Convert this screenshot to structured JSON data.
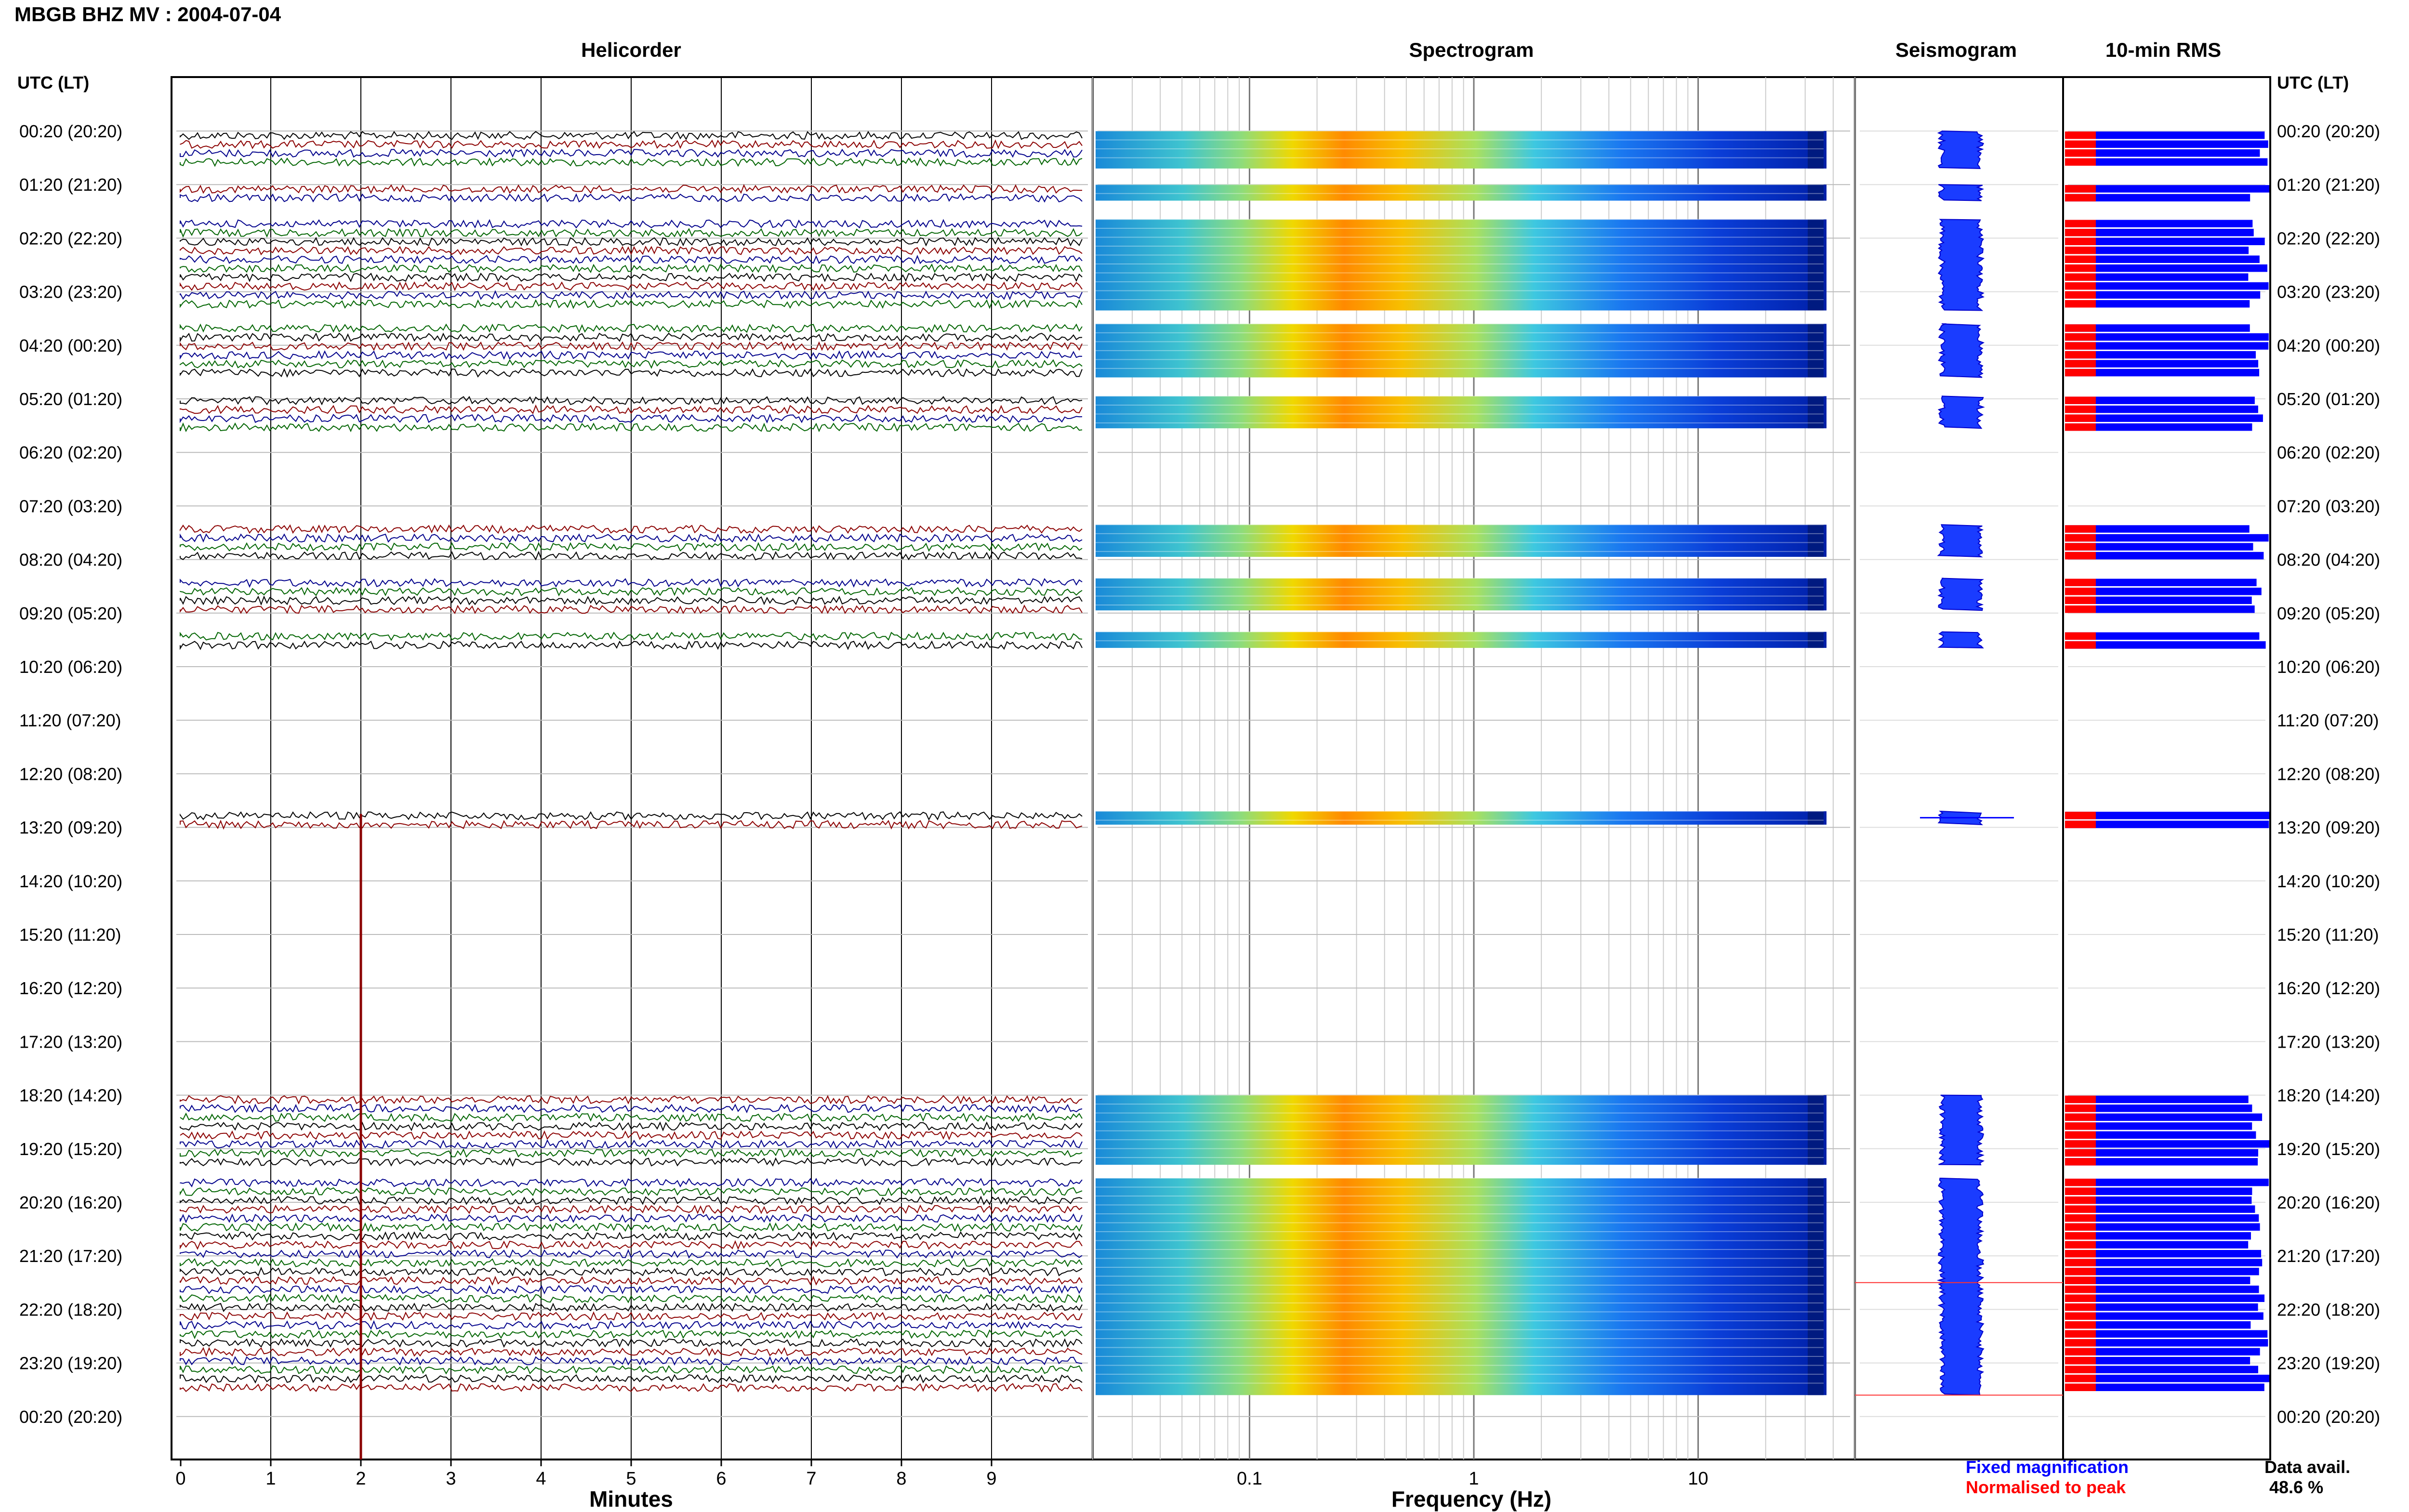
{
  "title": "MBGB BHZ MV : 2004-07-04",
  "panels": {
    "helicorder": "Helicorder",
    "spectrogram": "Spectrogram",
    "seismogram": "Seismogram",
    "rms": "10-min RMS"
  },
  "axis_labels": {
    "left_header": "UTC (LT)",
    "right_header": "UTC (LT)",
    "x_helicorder": "Minutes",
    "x_spectrogram": "Frequency (Hz)"
  },
  "legend": {
    "fixed": "Fixed magnification",
    "normalised": "Normalised to peak",
    "fixed_color": "#0000ff",
    "normalised_color": "#ff0000"
  },
  "data_availability": {
    "label": "Data avail.",
    "value": "48.6 %"
  },
  "colors": {
    "trace_black": "#000000",
    "trace_red": "#8b0000",
    "trace_blue": "#00008b",
    "trace_green": "#006400",
    "rms_blue": "#0000ff",
    "rms_red": "#ff0000"
  },
  "chart_data": {
    "type": "heatmap",
    "time_labels": [
      "00:20 (20:20)",
      "01:20 (21:20)",
      "02:20 (22:20)",
      "03:20 (23:20)",
      "04:20 (00:20)",
      "05:20 (01:20)",
      "06:20 (02:20)",
      "07:20 (03:20)",
      "08:20 (04:20)",
      "09:20 (05:20)",
      "10:20 (06:20)",
      "11:20 (07:20)",
      "12:20 (08:20)",
      "13:20 (09:20)",
      "14:20 (10:20)",
      "15:20 (11:20)",
      "16:20 (12:20)",
      "17:20 (13:20)",
      "18:20 (14:20)",
      "19:20 (15:20)",
      "20:20 (16:20)",
      "21:20 (17:20)",
      "22:20 (18:20)",
      "23:20 (19:20)",
      "00:20 (20:20)"
    ],
    "minutes_ticks": [
      "0",
      "1",
      "2",
      "3",
      "4",
      "5",
      "6",
      "7",
      "8",
      "9"
    ],
    "minutes_range": [
      0,
      10
    ],
    "frequency_ticks": [
      "0.1",
      "1",
      "10"
    ],
    "frequency_range_hz": [
      0.02,
      50
    ],
    "frequency_scale": "log",
    "data_segments_hours": [
      {
        "start": 0.0,
        "end": 0.7
      },
      {
        "start": 1.0,
        "end": 1.3
      },
      {
        "start": 1.65,
        "end": 3.35
      },
      {
        "start": 3.6,
        "end": 4.6
      },
      {
        "start": 4.95,
        "end": 5.55
      },
      {
        "start": 7.35,
        "end": 7.95
      },
      {
        "start": 8.35,
        "end": 8.95
      },
      {
        "start": 9.35,
        "end": 9.65
      },
      {
        "start": 12.7,
        "end": 12.95
      },
      {
        "start": 18.0,
        "end": 19.3
      },
      {
        "start": 19.55,
        "end": 23.6
      }
    ],
    "data_availability_percent": 48.6
  }
}
